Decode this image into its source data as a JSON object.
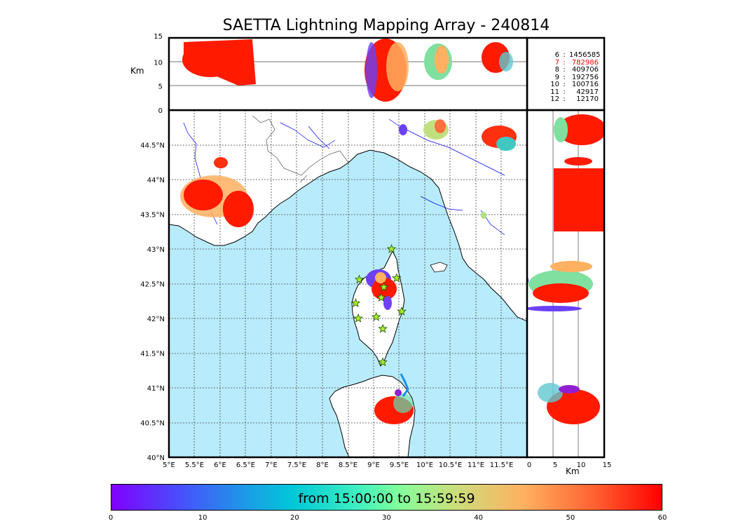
{
  "title": "SAETTA Lightning Mapping Array - 240814",
  "alt_axis": {
    "label": "Km",
    "ticks": [
      "0",
      "5",
      "10",
      "15"
    ]
  },
  "lon_axis": {
    "ticks": [
      "5°E",
      "5.5°E",
      "6°E",
      "6.5°E",
      "7°E",
      "7.5°E",
      "8°E",
      "8.5°E",
      "9°E",
      "9.5°E",
      "10°E",
      "10.5°E",
      "11°E",
      "11.5°E"
    ],
    "range": [
      5,
      12
    ]
  },
  "lat_axis": {
    "ticks": [
      "40°N",
      "40.5°N",
      "41°N",
      "41.5°N",
      "42°N",
      "42.5°N",
      "43°N",
      "43.5°N",
      "44°N",
      "44.5°N"
    ],
    "range": [
      40,
      45
    ]
  },
  "km_axis_right": {
    "label": "Km",
    "ticks": [
      "0",
      "5",
      "10",
      "15"
    ]
  },
  "counts": [
    {
      "key": "6",
      "value": "1456585",
      "color": "#000000"
    },
    {
      "key": "7",
      "value": "782986",
      "color": "#ff0000"
    },
    {
      "key": "8",
      "value": "409706",
      "color": "#000000"
    },
    {
      "key": "9",
      "value": "192756",
      "color": "#000000"
    },
    {
      "key": "10",
      "value": "100716",
      "color": "#000000"
    },
    {
      "key": "11",
      "value": "42917",
      "color": "#000000"
    },
    {
      "key": "12",
      "value": "12170",
      "color": "#000000"
    }
  ],
  "colorbar": {
    "label": "from 15:00:00 to 15:59:59",
    "ticks": [
      "0",
      "10",
      "20",
      "30",
      "40",
      "50",
      "60"
    ],
    "range": [
      0,
      60
    ]
  },
  "colors": {
    "sea": "#b8ecfc",
    "land": "#ffffff",
    "border": "#000000",
    "rivers": "#0000ff"
  },
  "map_features": [
    "Corsica",
    "Sardinia",
    "Ligurian coast",
    "Tuscan coast",
    "French Riviera"
  ],
  "lightning_clusters": [
    {
      "name": "provence",
      "lon": 6.1,
      "lat": 43.9,
      "time": "late"
    },
    {
      "name": "corsica-north",
      "lon": 9.25,
      "lat": 42.5,
      "time": "mixed"
    },
    {
      "name": "sardinia-north",
      "lon": 9.4,
      "lat": 40.7,
      "time": "late"
    },
    {
      "name": "tuscany-north",
      "lon": 10.15,
      "lat": 44.6,
      "time": "mid"
    },
    {
      "name": "emilia",
      "lon": 11.3,
      "lat": 44.7,
      "time": "late"
    }
  ],
  "stations": [
    {
      "lon": 9.35,
      "lat": 43.0
    },
    {
      "lon": 8.72,
      "lat": 42.56
    },
    {
      "lon": 9.45,
      "lat": 42.58
    },
    {
      "lon": 9.2,
      "lat": 42.45
    },
    {
      "lon": 8.65,
      "lat": 42.22
    },
    {
      "lon": 9.15,
      "lat": 42.3
    },
    {
      "lon": 9.55,
      "lat": 42.1
    },
    {
      "lon": 8.7,
      "lat": 42.0
    },
    {
      "lon": 9.05,
      "lat": 42.02
    },
    {
      "lon": 9.18,
      "lat": 41.85
    },
    {
      "lon": 9.18,
      "lat": 41.37
    }
  ]
}
